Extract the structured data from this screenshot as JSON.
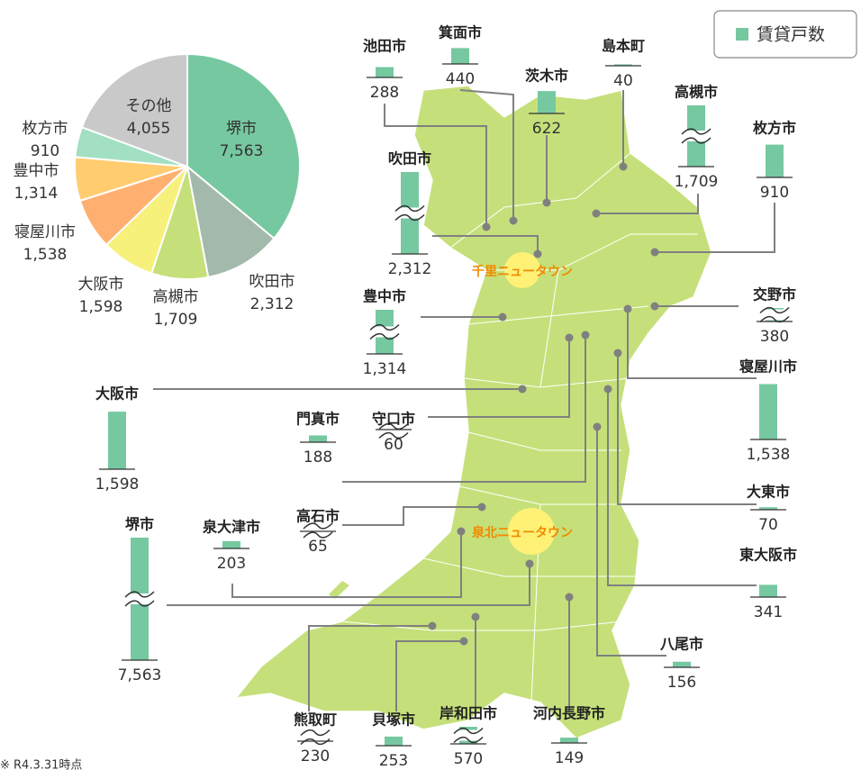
{
  "chart_data": [
    {
      "type": "pie",
      "categories": [
        "堺市",
        "吹田市",
        "高槻市",
        "大阪市",
        "寝屋川市",
        "豊中市",
        "枚方市",
        "その他"
      ],
      "values": [
        7563,
        2312,
        1709,
        1598,
        1538,
        1314,
        910,
        4055
      ],
      "value_labels": [
        "7,563",
        "2,312",
        "1,709",
        "1,598",
        "1,538",
        "1,314",
        "910",
        "4,055"
      ],
      "colors": [
        "#76c8a0",
        "#a2b9ab",
        "#c5e07a",
        "#f7f07a",
        "#ffb070",
        "#ffcc70",
        "#a3dfc2",
        "#c9c9c9"
      ]
    },
    {
      "type": "map-bar",
      "categories": [
        "池田市",
        "箕面市",
        "茨木市",
        "島本町",
        "高槻市",
        "枚方市",
        "吹田市",
        "豊中市",
        "交野市",
        "寝屋川市",
        "大阪市",
        "門真市",
        "守口市",
        "大東市",
        "東大阪市",
        "高石市",
        "泉大津市",
        "堺市",
        "八尾市",
        "熊取町",
        "貝塚市",
        "岸和田市",
        "河内長野市"
      ],
      "series": [
        {
          "name": "賃貸戸数",
          "color": "#76c8a0",
          "values": [
            288,
            440,
            622,
            40,
            1709,
            910,
            2312,
            1314,
            380,
            1538,
            1598,
            188,
            60,
            70,
            341,
            65,
            203,
            7563,
            156,
            230,
            253,
            570,
            149
          ],
          "value_labels": [
            "288",
            "440",
            "622",
            "40",
            "1,709",
            "910",
            "2,312",
            "1,314",
            "380",
            "1,538",
            "1,598",
            "188",
            "60",
            "70",
            "341",
            "65",
            "203",
            "7,563",
            "156",
            "230",
            "253",
            "570",
            "149"
          ]
        }
      ],
      "annotations": [
        "千里ニュータウン",
        "泉北ニュータウン"
      ],
      "legend": "top-right"
    }
  ],
  "footnote": "※ R4.3.31時点"
}
